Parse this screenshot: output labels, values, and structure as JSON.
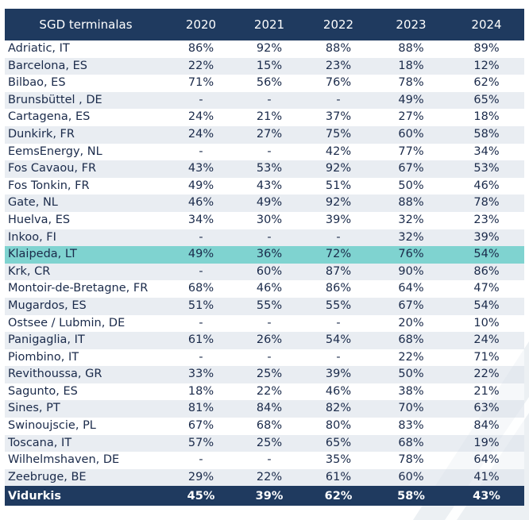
{
  "chart_data": {
    "type": "table",
    "columns": [
      "SGD terminalas",
      "2020",
      "2021",
      "2022",
      "2023",
      "2024"
    ],
    "rows": [
      [
        "Adriatic, IT",
        "86%",
        "92%",
        "88%",
        "88%",
        "89%"
      ],
      [
        "Barcelona, ES",
        "22%",
        "15%",
        "23%",
        "18%",
        "12%"
      ],
      [
        "Bilbao, ES",
        "71%",
        "56%",
        "76%",
        "78%",
        "62%"
      ],
      [
        "Brunsbüttel , DE",
        "-",
        "-",
        "-",
        "49%",
        "65%"
      ],
      [
        "Cartagena, ES",
        "24%",
        "21%",
        "37%",
        "27%",
        "18%"
      ],
      [
        "Dunkirk, FR",
        "24%",
        "27%",
        "75%",
        "60%",
        "58%"
      ],
      [
        "EemsEnergy, NL",
        "-",
        "-",
        "42%",
        "77%",
        "34%"
      ],
      [
        "Fos Cavaou, FR",
        "43%",
        "53%",
        "92%",
        "67%",
        "53%"
      ],
      [
        "Fos Tonkin, FR",
        "49%",
        "43%",
        "51%",
        "50%",
        "46%"
      ],
      [
        "Gate, NL",
        "46%",
        "49%",
        "92%",
        "88%",
        "78%"
      ],
      [
        "Huelva, ES",
        "34%",
        "30%",
        "39%",
        "32%",
        "23%"
      ],
      [
        "Inkoo, FI",
        "-",
        "-",
        "-",
        "32%",
        "39%"
      ],
      [
        "Klaipeda, LT",
        "49%",
        "36%",
        "72%",
        "76%",
        "54%"
      ],
      [
        "Krk, CR",
        "-",
        "60%",
        "87%",
        "90%",
        "86%"
      ],
      [
        "Montoir-de-Bretagne, FR",
        "68%",
        "46%",
        "86%",
        "64%",
        "47%"
      ],
      [
        "Mugardos, ES",
        "51%",
        "55%",
        "55%",
        "67%",
        "54%"
      ],
      [
        "Ostsee / Lubmin, DE",
        "-",
        "-",
        "-",
        "20%",
        "10%"
      ],
      [
        "Panigaglia, IT",
        "61%",
        "26%",
        "54%",
        "68%",
        "24%"
      ],
      [
        "Piombino, IT",
        "-",
        "-",
        "-",
        "22%",
        "71%"
      ],
      [
        "Revithoussa, GR",
        "33%",
        "25%",
        "39%",
        "50%",
        "22%"
      ],
      [
        "Sagunto, ES",
        "18%",
        "22%",
        "46%",
        "38%",
        "21%"
      ],
      [
        "Sines, PT",
        "81%",
        "84%",
        "82%",
        "70%",
        "63%"
      ],
      [
        "Swinoujscie, PL",
        "67%",
        "68%",
        "80%",
        "83%",
        "84%"
      ],
      [
        "Toscana, IT",
        "57%",
        "25%",
        "65%",
        "68%",
        "19%"
      ],
      [
        "Wilhelmshaven, DE",
        "-",
        "-",
        "35%",
        "78%",
        "64%"
      ],
      [
        "Zeebruge, BE",
        "29%",
        "22%",
        "61%",
        "60%",
        "41%"
      ]
    ],
    "total_row": [
      "Vidurkis",
      "45%",
      "39%",
      "62%",
      "58%",
      "43%"
    ],
    "highlight_row": "Klaipeda, LT",
    "colors": {
      "header_bg": "#1f3a5f",
      "header_text": "#ffffff",
      "stripe": "#e2e7ed",
      "highlight": "#7fd3d0"
    }
  }
}
